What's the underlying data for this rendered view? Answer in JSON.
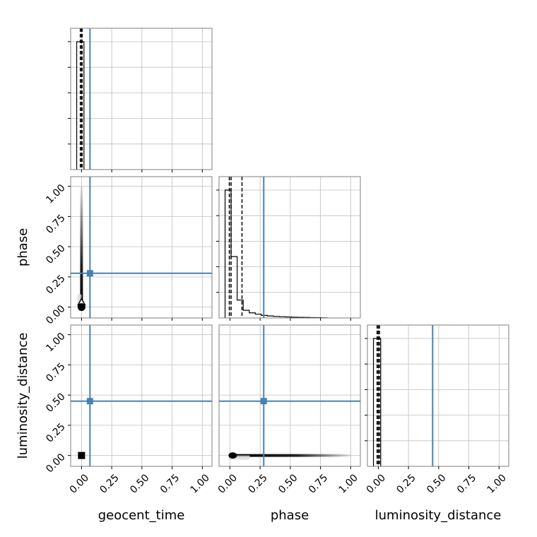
{
  "chart_data": {
    "type": "corner",
    "parameters": [
      "geocent_time",
      "phase",
      "luminosity_distance"
    ],
    "axis_labels": {
      "x": [
        "geocent_time",
        "phase",
        "luminosity_distance"
      ],
      "y": [
        "",
        "phase",
        "luminosity_distance"
      ]
    },
    "axis_range": [
      -0.09,
      1.08
    ],
    "tick_values": [
      0.0,
      0.25,
      0.5,
      0.75,
      1.0
    ],
    "tick_labels": [
      "0.00",
      "0.25",
      "0.50",
      "0.75",
      "1.00"
    ],
    "grid": true,
    "truths": {
      "geocent_time": 0.07,
      "phase": 0.28,
      "luminosity_distance": 0.45
    },
    "truth_color": "#4682b4",
    "quantile_lines": {
      "geocent_time": [
        -0.01,
        0.0,
        0.005
      ],
      "phase": [
        -0.005,
        0.01,
        0.1
      ],
      "luminosity_distance": [
        -0.01,
        0.0,
        0.01
      ]
    },
    "histograms": {
      "geocent_time": {
        "bin_edges": [
          -0.04,
          0.02
        ],
        "counts": [
          1.0
        ]
      },
      "phase": {
        "bin_edges": [
          -0.04,
          0.01,
          0.06,
          0.11,
          0.16,
          0.21,
          0.26,
          0.31,
          0.36,
          0.41,
          0.46,
          0.51,
          0.56,
          0.61,
          0.66,
          0.71,
          0.76,
          0.81
        ],
        "counts": [
          1.0,
          0.48,
          0.14,
          0.06,
          0.04,
          0.03,
          0.02,
          0.016,
          0.012,
          0.01,
          0.008,
          0.006,
          0.005,
          0.004,
          0.003,
          0.002,
          0.001
        ]
      },
      "luminosity_distance": {
        "bin_edges": [
          -0.04,
          0.02
        ],
        "counts": [
          1.0
        ]
      }
    },
    "histogram_levels": [
      0.2,
      0.4,
      0.6,
      0.8,
      1.0
    ],
    "scatter_2d": {
      "phase_vs_geocent_time": {
        "x_range": [
          -0.01,
          0.01
        ],
        "y_range": [
          0.0,
          1.0
        ],
        "core": [
          0.0,
          0.0
        ]
      },
      "luminosity_distance_vs_geocent_time": {
        "x_range": [
          -0.01,
          0.01
        ],
        "y_range": [
          -0.01,
          0.01
        ],
        "core": [
          0.0,
          0.0
        ]
      },
      "luminosity_distance_vs_phase": {
        "x_range": [
          0.0,
          1.0
        ],
        "y_range": [
          -0.01,
          0.01
        ],
        "core": [
          0.0,
          0.0
        ]
      }
    }
  }
}
